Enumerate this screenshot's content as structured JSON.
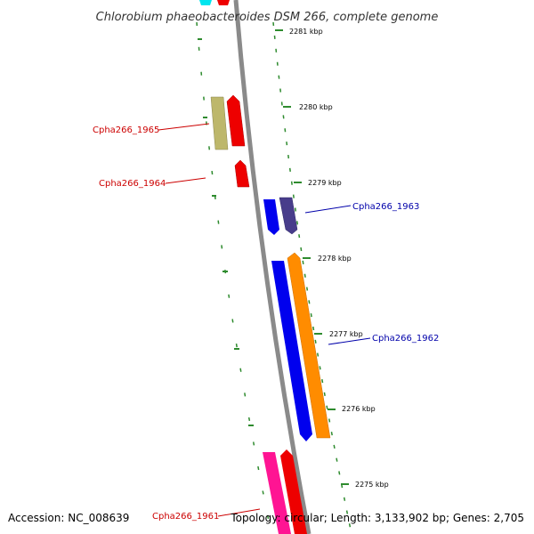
{
  "title": "Chlorobium phaeobacteroides DSM 266, complete genome",
  "footer": {
    "accession": "Accession: NC_008639",
    "summary": "Topology: circular; Length: 3,133,902 bp; Genes: 2,705"
  },
  "ticks": [
    "2281 kbp",
    "2280 kbp",
    "2279 kbp",
    "2278 kbp",
    "2277 kbp",
    "2276 kbp",
    "2275 kbp"
  ],
  "gene_labels": [
    {
      "text": "Cpha266_1965",
      "color": "#cc0000"
    },
    {
      "text": "Cpha266_1964",
      "color": "#cc0000"
    },
    {
      "text": "Cpha266_1963",
      "color": "#0000aa"
    },
    {
      "text": "Cpha266_1962",
      "color": "#0000aa"
    },
    {
      "text": "Cpha266_1961",
      "color": "#cc0000"
    }
  ],
  "colors": {
    "backbone": "#8a8a8a",
    "tick_marks": "#2e8b2e",
    "red": "#ee0000",
    "khaki": "#bdb76b",
    "blue": "#0000ee",
    "dark_slate_blue": "#483d8b",
    "orange": "#ff8c00",
    "pink": "#ff1493",
    "cyan": "#00e5ee"
  }
}
